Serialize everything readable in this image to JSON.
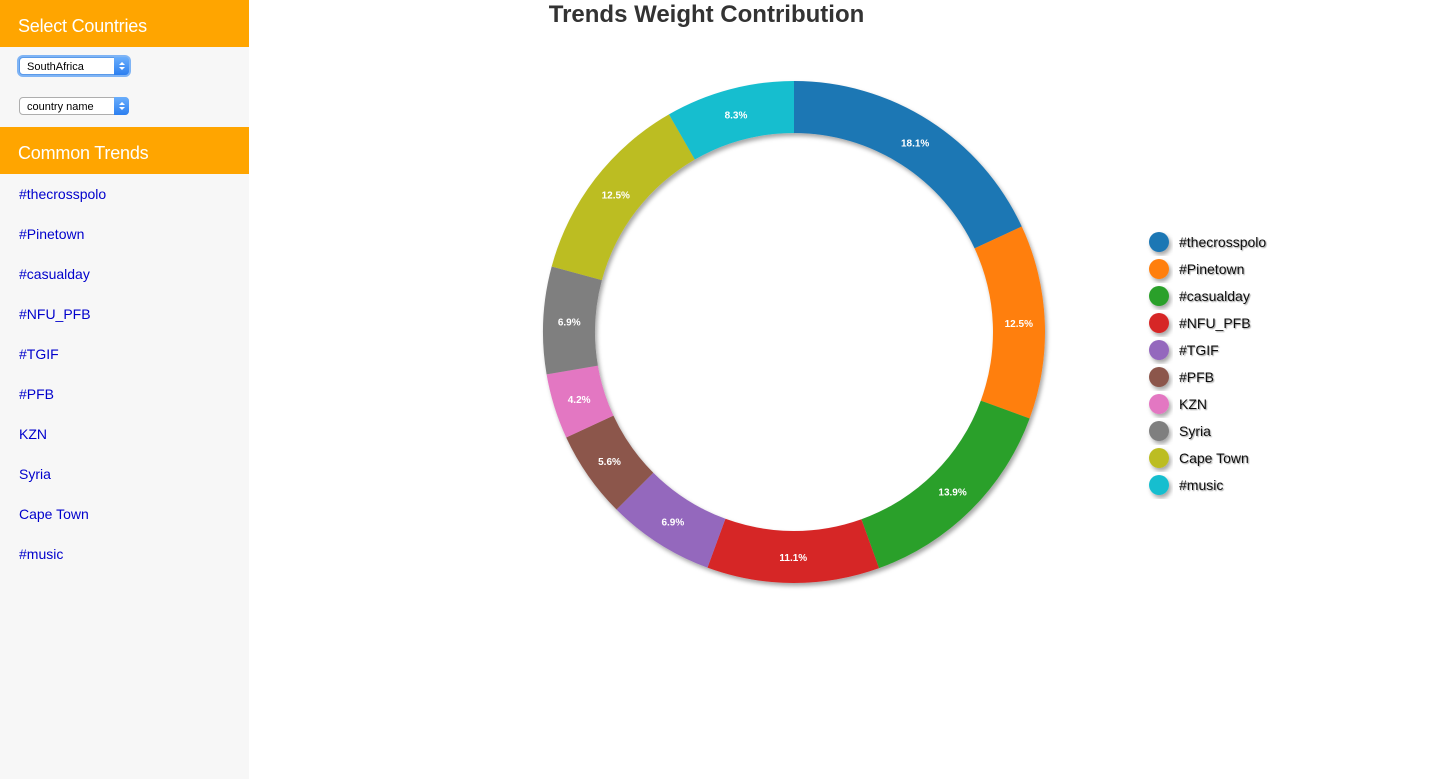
{
  "sidebar": {
    "countries_header": "Select Countries",
    "country_select_1": "SouthAfrica",
    "country_select_2": "country name",
    "trends_header": "Common Trends",
    "trends": [
      "#thecrosspolo",
      "#Pinetown",
      "#casualday",
      "#NFU_PFB",
      "#TGIF",
      "#PFB",
      "KZN",
      "Syria",
      "Cape Town",
      "#music"
    ]
  },
  "chart_data": {
    "type": "pie",
    "title": "Trends Weight Contribution",
    "categories": [
      "#thecrosspolo",
      "#Pinetown",
      "#casualday",
      "#NFU_PFB",
      "#TGIF",
      "#PFB",
      "KZN",
      "Syria",
      "Cape Town",
      "#music"
    ],
    "values": [
      18.1,
      12.5,
      13.9,
      11.1,
      6.9,
      5.6,
      4.2,
      6.9,
      12.5,
      8.3
    ],
    "labels": [
      "18.1%",
      "12.5%",
      "13.9%",
      "11.1%",
      "6.9%",
      "5.6%",
      "4.2%",
      "6.9%",
      "12.5%",
      "8.3%"
    ],
    "colors": [
      "#1f77b4",
      "#ff7f0e",
      "#2ca02c",
      "#d62728",
      "#9467bd",
      "#8c564b",
      "#e377c2",
      "#7f7f7f",
      "#bcbd22",
      "#17becf"
    ],
    "donut": true,
    "legend_position": "right"
  }
}
